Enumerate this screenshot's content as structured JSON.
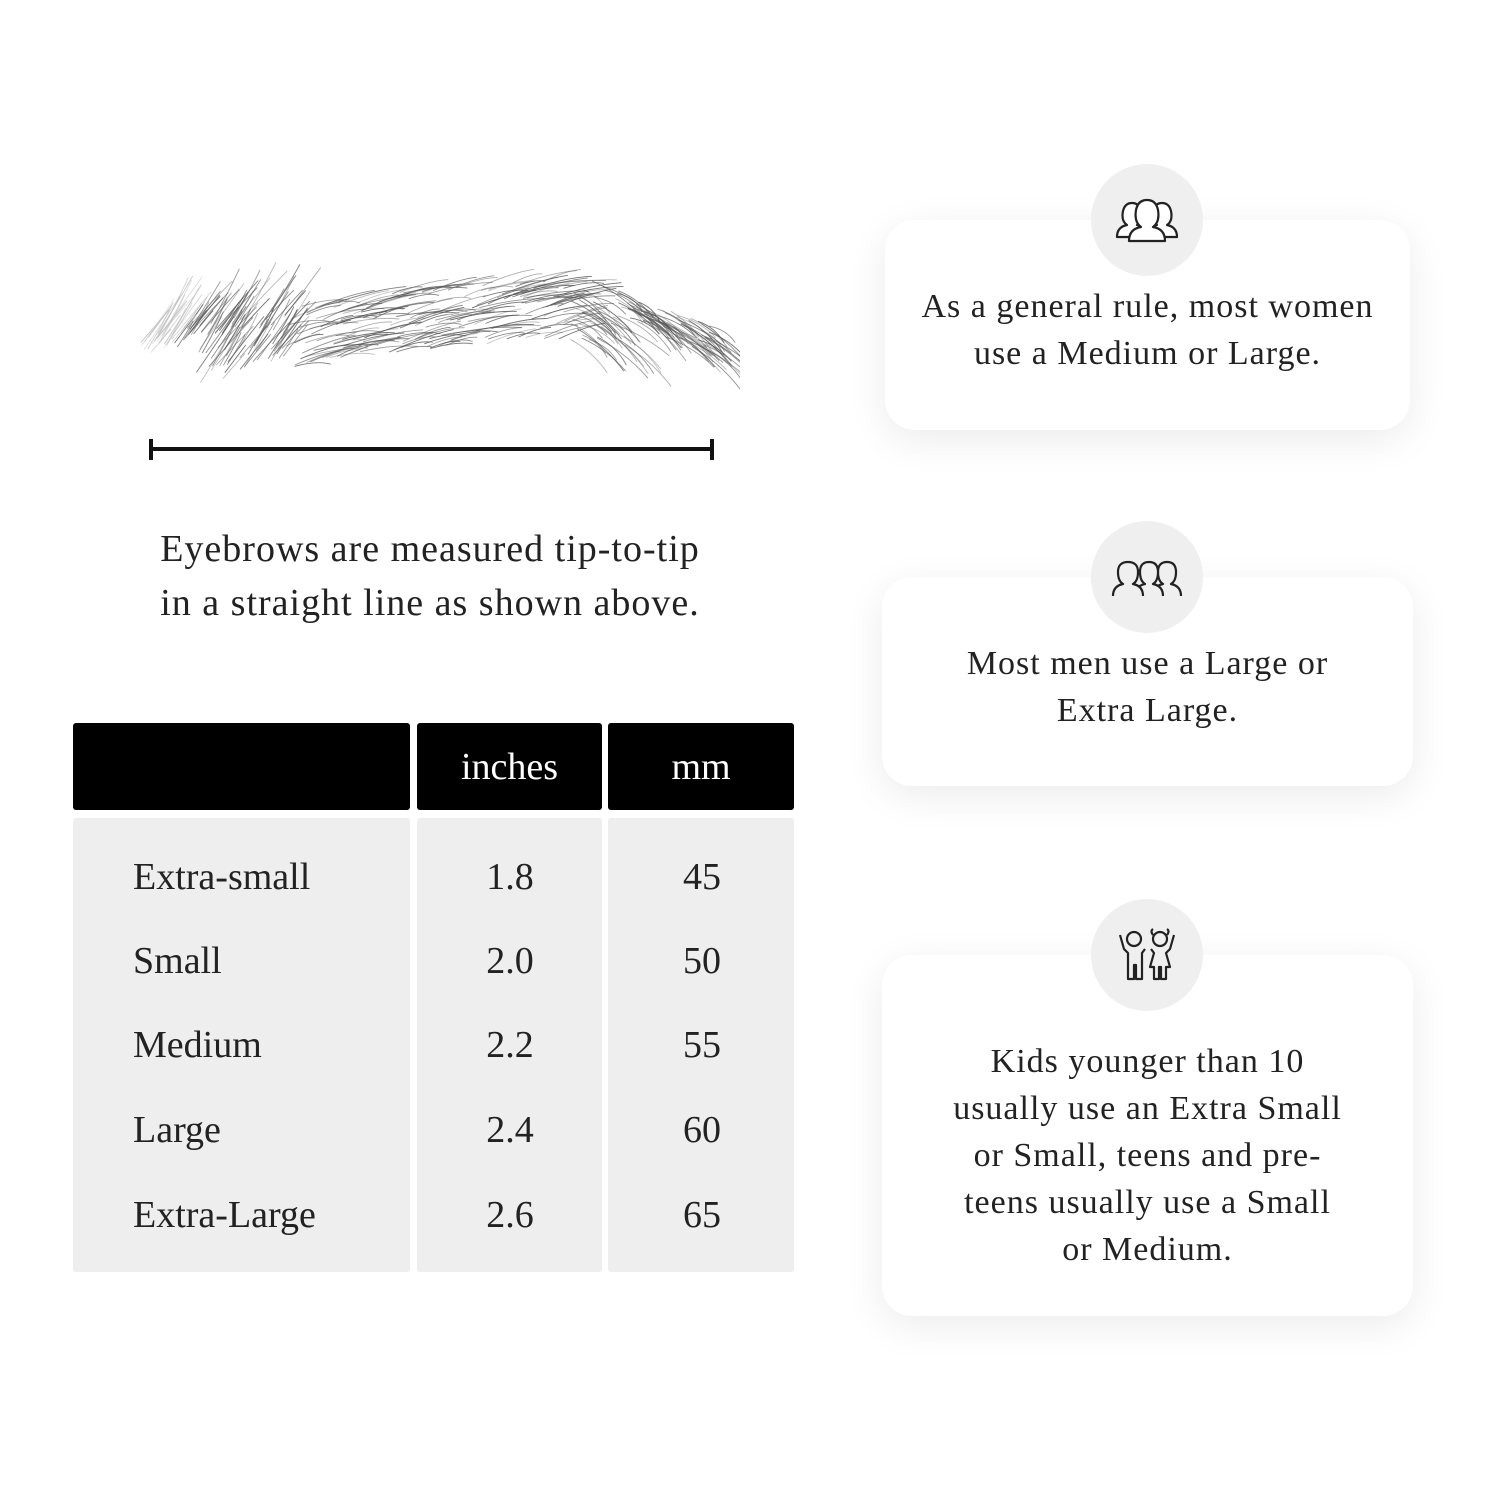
{
  "measurement": {
    "caption_line1": "Eyebrows are measured tip-to-tip",
    "caption_line2": "in a straight line as shown above."
  },
  "table": {
    "headers": [
      "",
      "inches",
      "mm"
    ],
    "rows": [
      {
        "size": "Extra-small",
        "inches": "1.8",
        "mm": "45"
      },
      {
        "size": "Small",
        "inches": "2.0",
        "mm": "50"
      },
      {
        "size": "Medium",
        "inches": "2.2",
        "mm": "55"
      },
      {
        "size": "Large",
        "inches": "2.4",
        "mm": "60"
      },
      {
        "size": "Extra-Large",
        "inches": "2.6",
        "mm": "65"
      }
    ]
  },
  "cards": [
    {
      "icon": "women-group-icon",
      "text": "As a general rule, most women use a Medium or Large."
    },
    {
      "icon": "men-group-icon",
      "text": "Most men use a Large or Extra Large."
    },
    {
      "icon": "kids-icon",
      "text": "Kids younger than 10 usually use an Extra Small or Small, teens and pre-teens usually use a Small or Medium."
    }
  ]
}
